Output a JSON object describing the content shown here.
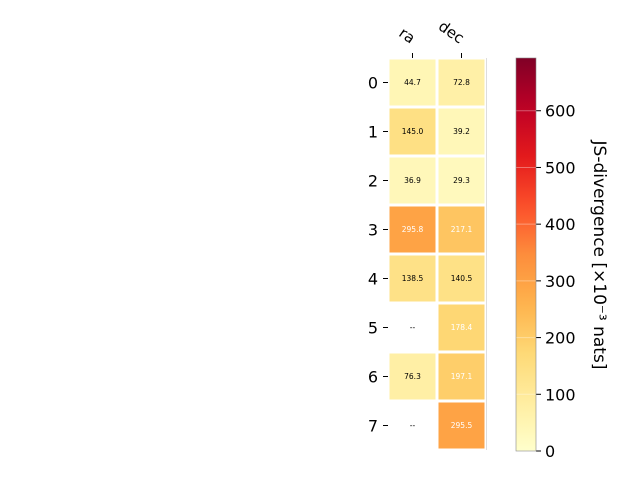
{
  "chart_data": {
    "type": "heatmap",
    "title": "",
    "columns": [
      "ra",
      "dec"
    ],
    "rows": [
      "0",
      "1",
      "2",
      "3",
      "4",
      "5",
      "6",
      "7"
    ],
    "cell_labels": [
      [
        "44.7",
        "72.8"
      ],
      [
        "145.0",
        "39.2"
      ],
      [
        "36.9",
        "29.3"
      ],
      [
        "295.8",
        "217.1"
      ],
      [
        "138.5",
        "140.5"
      ],
      [
        "--",
        "178.4"
      ],
      [
        "76.3",
        "197.1"
      ],
      [
        "--",
        "295.5"
      ]
    ],
    "values": [
      [
        44.7,
        72.8
      ],
      [
        145.0,
        39.2
      ],
      [
        36.9,
        29.3
      ],
      [
        295.8,
        217.1
      ],
      [
        138.5,
        140.5
      ],
      [
        null,
        178.4
      ],
      [
        76.3,
        197.1
      ],
      [
        null,
        295.5
      ]
    ],
    "colorbar": {
      "label": "JS-divergence [×10⁻³ nats]",
      "colormap": "YlOrRd",
      "vmin": 0,
      "vmax": 693,
      "ticks": [
        0,
        100,
        200,
        300,
        400,
        500,
        600
      ]
    },
    "grid": false
  }
}
